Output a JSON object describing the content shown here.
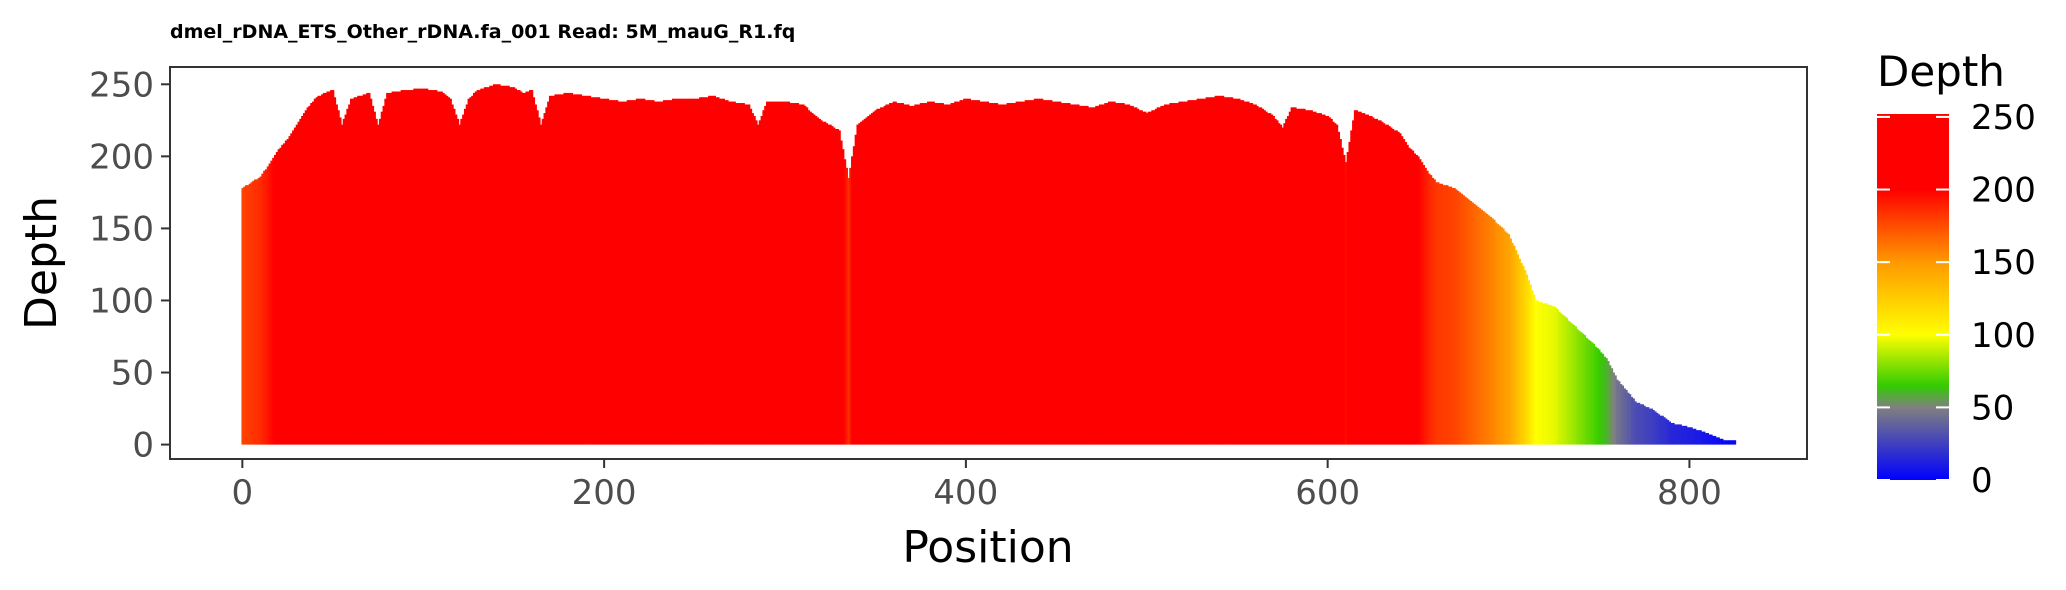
{
  "chart_data": {
    "type": "bar",
    "title": "dmel_rDNA_ETS_Other_rDNA.fa_001 Read: 5M_mauG_R1.fq",
    "xlabel": "Position",
    "ylabel": "Depth",
    "xlim": [
      -40,
      865
    ],
    "ylim": [
      -10,
      262
    ],
    "xticks": [
      0,
      200,
      400,
      600,
      800
    ],
    "yticks": [
      0,
      50,
      100,
      150,
      200,
      250
    ],
    "xtick_labels": [
      "0",
      "200",
      "400",
      "600",
      "800"
    ],
    "ytick_labels": [
      "0",
      "50",
      "100",
      "150",
      "200",
      "250"
    ],
    "grid": false,
    "legend": {
      "title": "Depth",
      "placement": "right",
      "breaks": [
        0,
        50,
        100,
        150,
        200,
        250
      ],
      "labels": [
        "0",
        "50",
        "100",
        "150",
        "200",
        "250"
      ],
      "limits": [
        0,
        252
      ]
    },
    "color_scale": [
      {
        "value": 0,
        "color": "#0000ff"
      },
      {
        "value": 50,
        "color": "#808080"
      },
      {
        "value": 65,
        "color": "#33cc00"
      },
      {
        "value": 100,
        "color": "#ffff00"
      },
      {
        "value": 150,
        "color": "#ff9900"
      },
      {
        "value": 200,
        "color": "#ff0000"
      },
      {
        "value": 252,
        "color": "#ff0000"
      }
    ],
    "depth_profile": [
      [
        0,
        178
      ],
      [
        5,
        182
      ],
      [
        10,
        186
      ],
      [
        15,
        195
      ],
      [
        20,
        205
      ],
      [
        25,
        212
      ],
      [
        30,
        222
      ],
      [
        35,
        232
      ],
      [
        40,
        240
      ],
      [
        45,
        244
      ],
      [
        50,
        246
      ],
      [
        55,
        222
      ],
      [
        60,
        240
      ],
      [
        65,
        242
      ],
      [
        70,
        244
      ],
      [
        75,
        222
      ],
      [
        80,
        244
      ],
      [
        90,
        246
      ],
      [
        100,
        247
      ],
      [
        110,
        245
      ],
      [
        115,
        240
      ],
      [
        120,
        222
      ],
      [
        125,
        240
      ],
      [
        130,
        246
      ],
      [
        140,
        250
      ],
      [
        150,
        248
      ],
      [
        155,
        244
      ],
      [
        160,
        246
      ],
      [
        165,
        222
      ],
      [
        170,
        242
      ],
      [
        180,
        244
      ],
      [
        190,
        242
      ],
      [
        200,
        240
      ],
      [
        210,
        238
      ],
      [
        220,
        240
      ],
      [
        230,
        238
      ],
      [
        240,
        240
      ],
      [
        250,
        240
      ],
      [
        260,
        242
      ],
      [
        270,
        238
      ],
      [
        280,
        236
      ],
      [
        285,
        222
      ],
      [
        290,
        238
      ],
      [
        300,
        238
      ],
      [
        310,
        236
      ],
      [
        315,
        230
      ],
      [
        320,
        225
      ],
      [
        330,
        218
      ],
      [
        335,
        185
      ],
      [
        340,
        222
      ],
      [
        350,
        232
      ],
      [
        360,
        238
      ],
      [
        370,
        235
      ],
      [
        380,
        238
      ],
      [
        390,
        236
      ],
      [
        400,
        240
      ],
      [
        410,
        238
      ],
      [
        420,
        236
      ],
      [
        430,
        238
      ],
      [
        440,
        240
      ],
      [
        450,
        238
      ],
      [
        460,
        236
      ],
      [
        470,
        234
      ],
      [
        480,
        238
      ],
      [
        490,
        236
      ],
      [
        500,
        230
      ],
      [
        510,
        236
      ],
      [
        520,
        238
      ],
      [
        530,
        240
      ],
      [
        540,
        242
      ],
      [
        550,
        240
      ],
      [
        560,
        236
      ],
      [
        570,
        228
      ],
      [
        575,
        220
      ],
      [
        580,
        234
      ],
      [
        590,
        232
      ],
      [
        600,
        228
      ],
      [
        605,
        222
      ],
      [
        610,
        196
      ],
      [
        615,
        232
      ],
      [
        620,
        230
      ],
      [
        630,
        224
      ],
      [
        640,
        216
      ],
      [
        645,
        206
      ],
      [
        650,
        200
      ],
      [
        655,
        190
      ],
      [
        660,
        182
      ],
      [
        670,
        178
      ],
      [
        680,
        168
      ],
      [
        690,
        158
      ],
      [
        700,
        146
      ],
      [
        705,
        132
      ],
      [
        710,
        118
      ],
      [
        715,
        100
      ],
      [
        720,
        98
      ],
      [
        725,
        96
      ],
      [
        730,
        90
      ],
      [
        735,
        84
      ],
      [
        740,
        78
      ],
      [
        745,
        72
      ],
      [
        750,
        66
      ],
      [
        755,
        58
      ],
      [
        760,
        45
      ],
      [
        770,
        30
      ],
      [
        780,
        24
      ],
      [
        790,
        15
      ],
      [
        800,
        12
      ],
      [
        810,
        8
      ],
      [
        815,
        5
      ],
      [
        820,
        3
      ],
      [
        825,
        0
      ]
    ]
  }
}
